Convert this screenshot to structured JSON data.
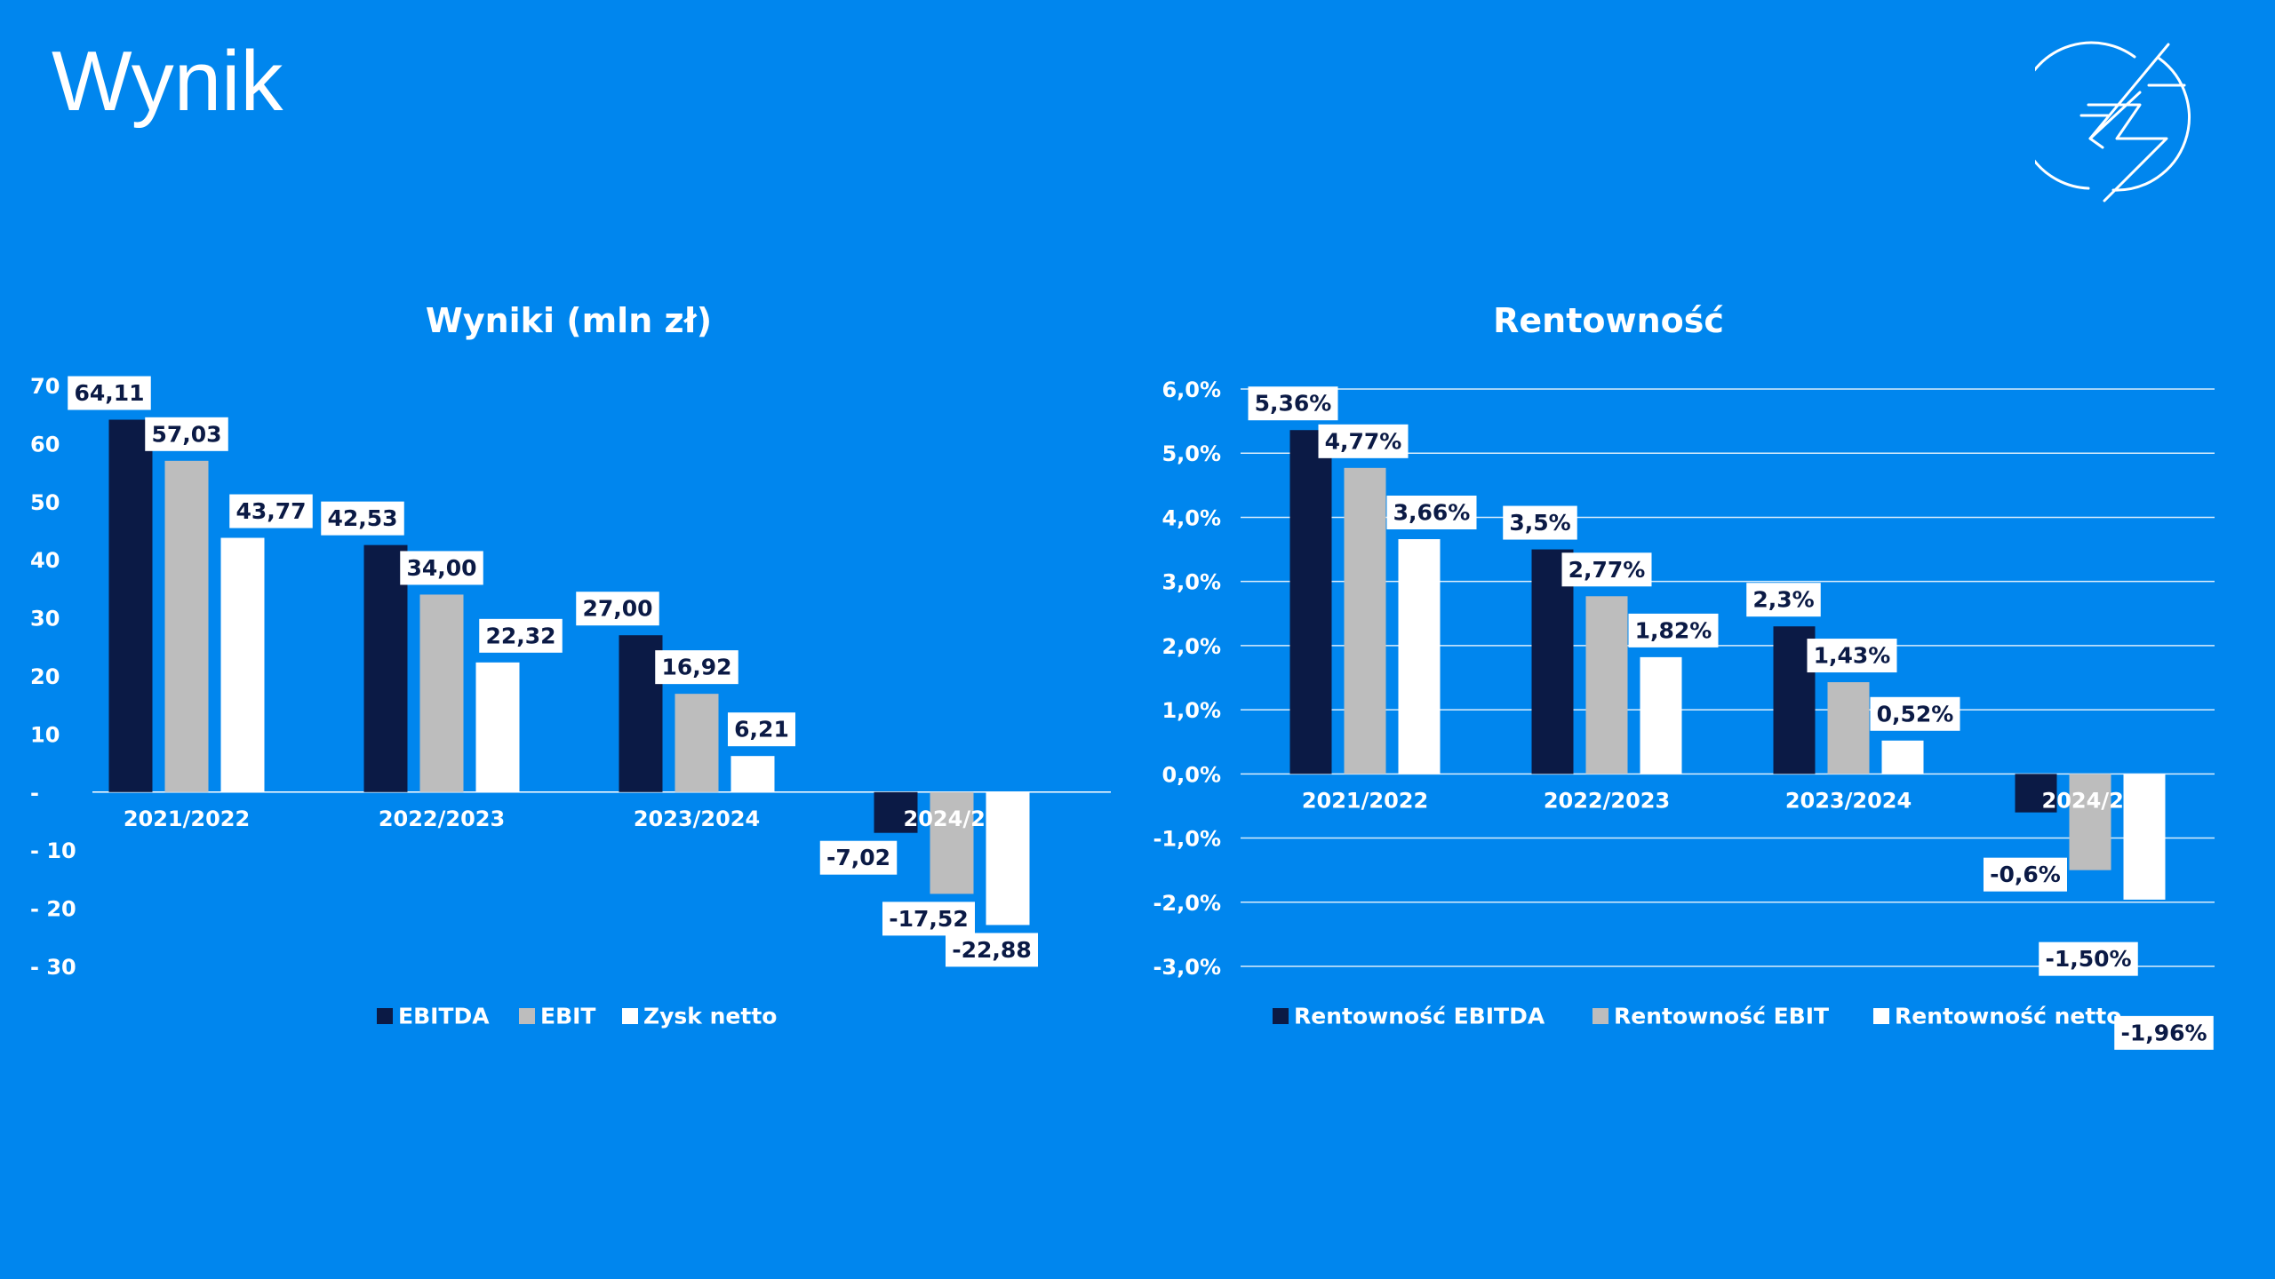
{
  "page": {
    "title": "Wynik"
  },
  "logo": {
    "icon": "lightning-circle-icon"
  },
  "colors": {
    "background": "#0086EE",
    "ebitda": "#0B1A45",
    "ebit": "#BDBDBD",
    "netto": "#FFFFFF",
    "label_text": "#0B1A45"
  },
  "chart_data": [
    {
      "type": "bar",
      "title": "Wyniki (mln zł)",
      "categories": [
        "2021/2022",
        "2022/2023",
        "2023/2024",
        "2024/2025"
      ],
      "visible_category_labels": [
        "2021/2022",
        "2022/2023",
        "2023/2024",
        "2024/20"
      ],
      "series": [
        {
          "name": "EBITDA",
          "values": [
            64.11,
            42.53,
            27.0,
            -7.02
          ],
          "labels": [
            "64,11",
            "42,53",
            "27,00",
            "-7,02"
          ]
        },
        {
          "name": "EBIT",
          "values": [
            57.03,
            34.0,
            16.92,
            -17.52
          ],
          "labels": [
            "57,03",
            "34,00",
            "16,92",
            "-17,52"
          ]
        },
        {
          "name": "Zysk netto",
          "values": [
            43.77,
            22.32,
            6.21,
            -22.88
          ],
          "labels": [
            "43,77",
            "22,32",
            "6,21",
            "-22,88"
          ]
        }
      ],
      "ylim": [
        -30,
        70
      ],
      "yticks": [
        70,
        60,
        50,
        40,
        30,
        20,
        10,
        0,
        -10,
        -20,
        -30
      ],
      "ytick_labels": [
        "70",
        "60",
        "50",
        "40",
        "30",
        "20",
        "10",
        "-",
        "- 10",
        "- 20",
        "- 30"
      ],
      "grid": false,
      "legend": "bottom"
    },
    {
      "type": "bar",
      "title": "Rentowność",
      "categories": [
        "2021/2022",
        "2022/2023",
        "2023/2024",
        "2024/2025"
      ],
      "visible_category_labels": [
        "2021/2022",
        "2022/2023",
        "2023/2024",
        "2024/20"
      ],
      "series": [
        {
          "name": "Rentowność EBITDA",
          "values": [
            5.36,
            3.5,
            2.3,
            -0.6
          ],
          "labels": [
            "5,36%",
            "3,5%",
            "2,3%",
            "-0,6%"
          ]
        },
        {
          "name": "Rentowność EBIT",
          "values": [
            4.77,
            2.77,
            1.43,
            -1.5
          ],
          "labels": [
            "4,77%",
            "2,77%",
            "1,43%",
            "-1,50%"
          ]
        },
        {
          "name": "Rentowność netto",
          "values": [
            3.66,
            1.82,
            0.52,
            -1.96
          ],
          "labels": [
            "3,66%",
            "1,82%",
            "0,52%",
            "-1,96%"
          ]
        }
      ],
      "ylim": [
        -3,
        6
      ],
      "yticks": [
        6,
        5,
        4,
        3,
        2,
        1,
        0,
        -1,
        -2,
        -3
      ],
      "ytick_labels": [
        "6,0%",
        "5,0%",
        "4,0%",
        "3,0%",
        "2,0%",
        "1,0%",
        "0,0%",
        "-1,0%",
        "-2,0%",
        "-3,0%"
      ],
      "grid": true,
      "legend": "bottom"
    }
  ]
}
